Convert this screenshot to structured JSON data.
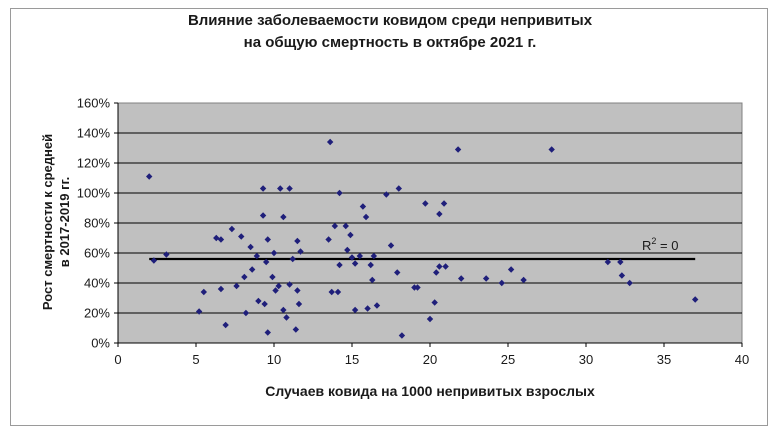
{
  "chart_data": {
    "type": "scatter",
    "title_line1": "Влияние заболеваемости ковидом среди непривитых",
    "title_line2": "на общую смертность в октябре 2021 г.",
    "xlabel": "Случаев ковида на 1000 непривитых взрослых",
    "ylabel_line1": "Рост смертности к средней",
    "ylabel_line2": "в 2017-2019 гг.",
    "xlim": [
      0,
      40
    ],
    "ylim": [
      0,
      160
    ],
    "x_ticks": [
      "0",
      "5",
      "10",
      "15",
      "20",
      "25",
      "30",
      "35",
      "40"
    ],
    "y_ticks": [
      "0%",
      "20%",
      "40%",
      "60%",
      "80%",
      "100%",
      "120%",
      "140%",
      "160%"
    ],
    "grid": "horizontal",
    "plot_area_color": "#c0c0c0",
    "marker_color": "#1f1f7a",
    "trendline": {
      "y": 56,
      "label_base": "R",
      "label_sup": "2",
      "label_rest": " = 0"
    },
    "points": [
      [
        2.0,
        111
      ],
      [
        2.3,
        55
      ],
      [
        3.1,
        59
      ],
      [
        5.2,
        21
      ],
      [
        5.5,
        34
      ],
      [
        6.3,
        70
      ],
      [
        6.6,
        69
      ],
      [
        6.6,
        36
      ],
      [
        6.9,
        12
      ],
      [
        7.3,
        76
      ],
      [
        7.6,
        38
      ],
      [
        7.9,
        71
      ],
      [
        8.1,
        44
      ],
      [
        8.2,
        20
      ],
      [
        8.5,
        64
      ],
      [
        8.6,
        49
      ],
      [
        8.9,
        58
      ],
      [
        9.0,
        28
      ],
      [
        9.3,
        103
      ],
      [
        9.3,
        85
      ],
      [
        9.6,
        69
      ],
      [
        9.5,
        54
      ],
      [
        9.4,
        26
      ],
      [
        9.6,
        7
      ],
      [
        9.9,
        44
      ],
      [
        10.0,
        60
      ],
      [
        10.1,
        35
      ],
      [
        10.3,
        38
      ],
      [
        10.4,
        103
      ],
      [
        10.6,
        84
      ],
      [
        10.6,
        22
      ],
      [
        10.8,
        17
      ],
      [
        11.0,
        103
      ],
      [
        11.2,
        56
      ],
      [
        11.0,
        39
      ],
      [
        11.4,
        9
      ],
      [
        11.5,
        68
      ],
      [
        11.5,
        35
      ],
      [
        11.6,
        26
      ],
      [
        11.7,
        61
      ],
      [
        13.6,
        134
      ],
      [
        13.5,
        69
      ],
      [
        13.7,
        34
      ],
      [
        13.9,
        78
      ],
      [
        14.2,
        100
      ],
      [
        14.2,
        52
      ],
      [
        14.1,
        34
      ],
      [
        14.6,
        78
      ],
      [
        14.7,
        62
      ],
      [
        14.9,
        72
      ],
      [
        15.0,
        57
      ],
      [
        15.2,
        53
      ],
      [
        15.2,
        22
      ],
      [
        15.5,
        58
      ],
      [
        15.7,
        91
      ],
      [
        15.9,
        84
      ],
      [
        16.0,
        23
      ],
      [
        16.2,
        52
      ],
      [
        16.3,
        42
      ],
      [
        16.4,
        58
      ],
      [
        16.6,
        25
      ],
      [
        17.2,
        99
      ],
      [
        17.5,
        65
      ],
      [
        17.9,
        47
      ],
      [
        18.0,
        103
      ],
      [
        18.2,
        5
      ],
      [
        19.0,
        37
      ],
      [
        19.2,
        37
      ],
      [
        19.7,
        93
      ],
      [
        20.0,
        16
      ],
      [
        20.3,
        27
      ],
      [
        20.4,
        47
      ],
      [
        20.6,
        86
      ],
      [
        20.6,
        51
      ],
      [
        20.9,
        93
      ],
      [
        21.0,
        51
      ],
      [
        21.8,
        129
      ],
      [
        22.0,
        43
      ],
      [
        23.6,
        43
      ],
      [
        24.6,
        40
      ],
      [
        25.2,
        49
      ],
      [
        26.0,
        42
      ],
      [
        27.8,
        129
      ],
      [
        31.4,
        54
      ],
      [
        32.2,
        54
      ],
      [
        32.3,
        45
      ],
      [
        32.8,
        40
      ],
      [
        37.0,
        29
      ]
    ]
  }
}
